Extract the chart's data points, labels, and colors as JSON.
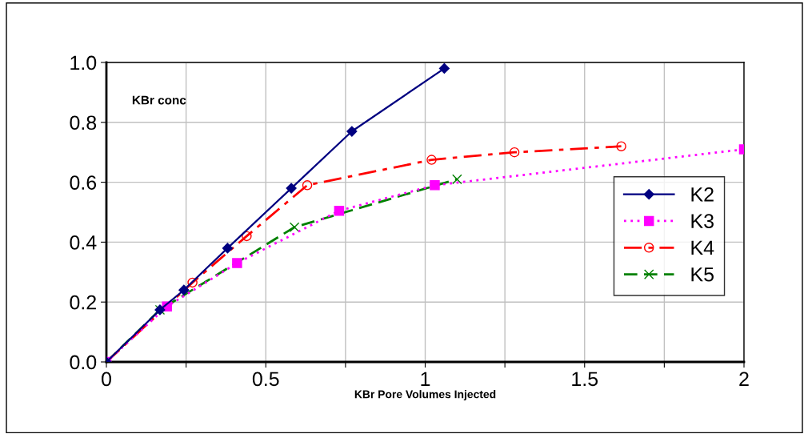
{
  "chart_data": {
    "type": "line",
    "xlabel": "KBr Pore Volumes Injected",
    "annotations": [
      "KBr conc"
    ],
    "series": [
      {
        "name": "K2",
        "color": "#000080",
        "marker": "diamond",
        "line_style": "solid",
        "x": [
          0,
          0.168,
          0.243,
          0.38,
          0.58,
          0.77,
          1.06
        ],
        "values": [
          0,
          0.174,
          0.24,
          0.38,
          0.58,
          0.77,
          0.98
        ]
      },
      {
        "name": "K3",
        "color": "#ff00ff",
        "marker": "square",
        "line_style": "dotted",
        "x": [
          0,
          0.19,
          0.41,
          0.73,
          1.03,
          2.0
        ],
        "values": [
          0,
          0.185,
          0.33,
          0.505,
          0.59,
          0.71
        ]
      },
      {
        "name": "K4",
        "color": "#ff0000",
        "marker": "circle",
        "line_style": "dashdot",
        "x": [
          0,
          0.27,
          0.44,
          0.63,
          1.02,
          1.28,
          1.615
        ],
        "values": [
          0,
          0.265,
          0.42,
          0.59,
          0.675,
          0.7,
          0.72
        ]
      },
      {
        "name": "K5",
        "color": "#008000",
        "marker": "cross",
        "line_style": "dashed",
        "x": [
          0,
          0.168,
          0.59,
          1.1
        ],
        "values": [
          0,
          0.174,
          0.45,
          0.61
        ]
      }
    ],
    "xlim": [
      0,
      2
    ],
    "ylim": [
      0,
      1
    ],
    "xticks": [
      0,
      {
        "value": 0.25,
        "label": null
      },
      0.5,
      {
        "value": 0.75,
        "label": null
      },
      1,
      {
        "value": 1.25,
        "label": null
      },
      1.5,
      {
        "value": 1.75,
        "label": null
      },
      2
    ],
    "yticks": [
      {
        "value": 0,
        "label": "0.0"
      },
      {
        "value": 0.2,
        "label": "0.2"
      },
      {
        "value": 0.4,
        "label": "0.4"
      },
      {
        "value": 0.6,
        "label": "0.6"
      },
      {
        "value": 0.8,
        "label": "0.8"
      },
      {
        "value": 1,
        "label": "1.0"
      }
    ],
    "grid": true,
    "legend": "right"
  }
}
